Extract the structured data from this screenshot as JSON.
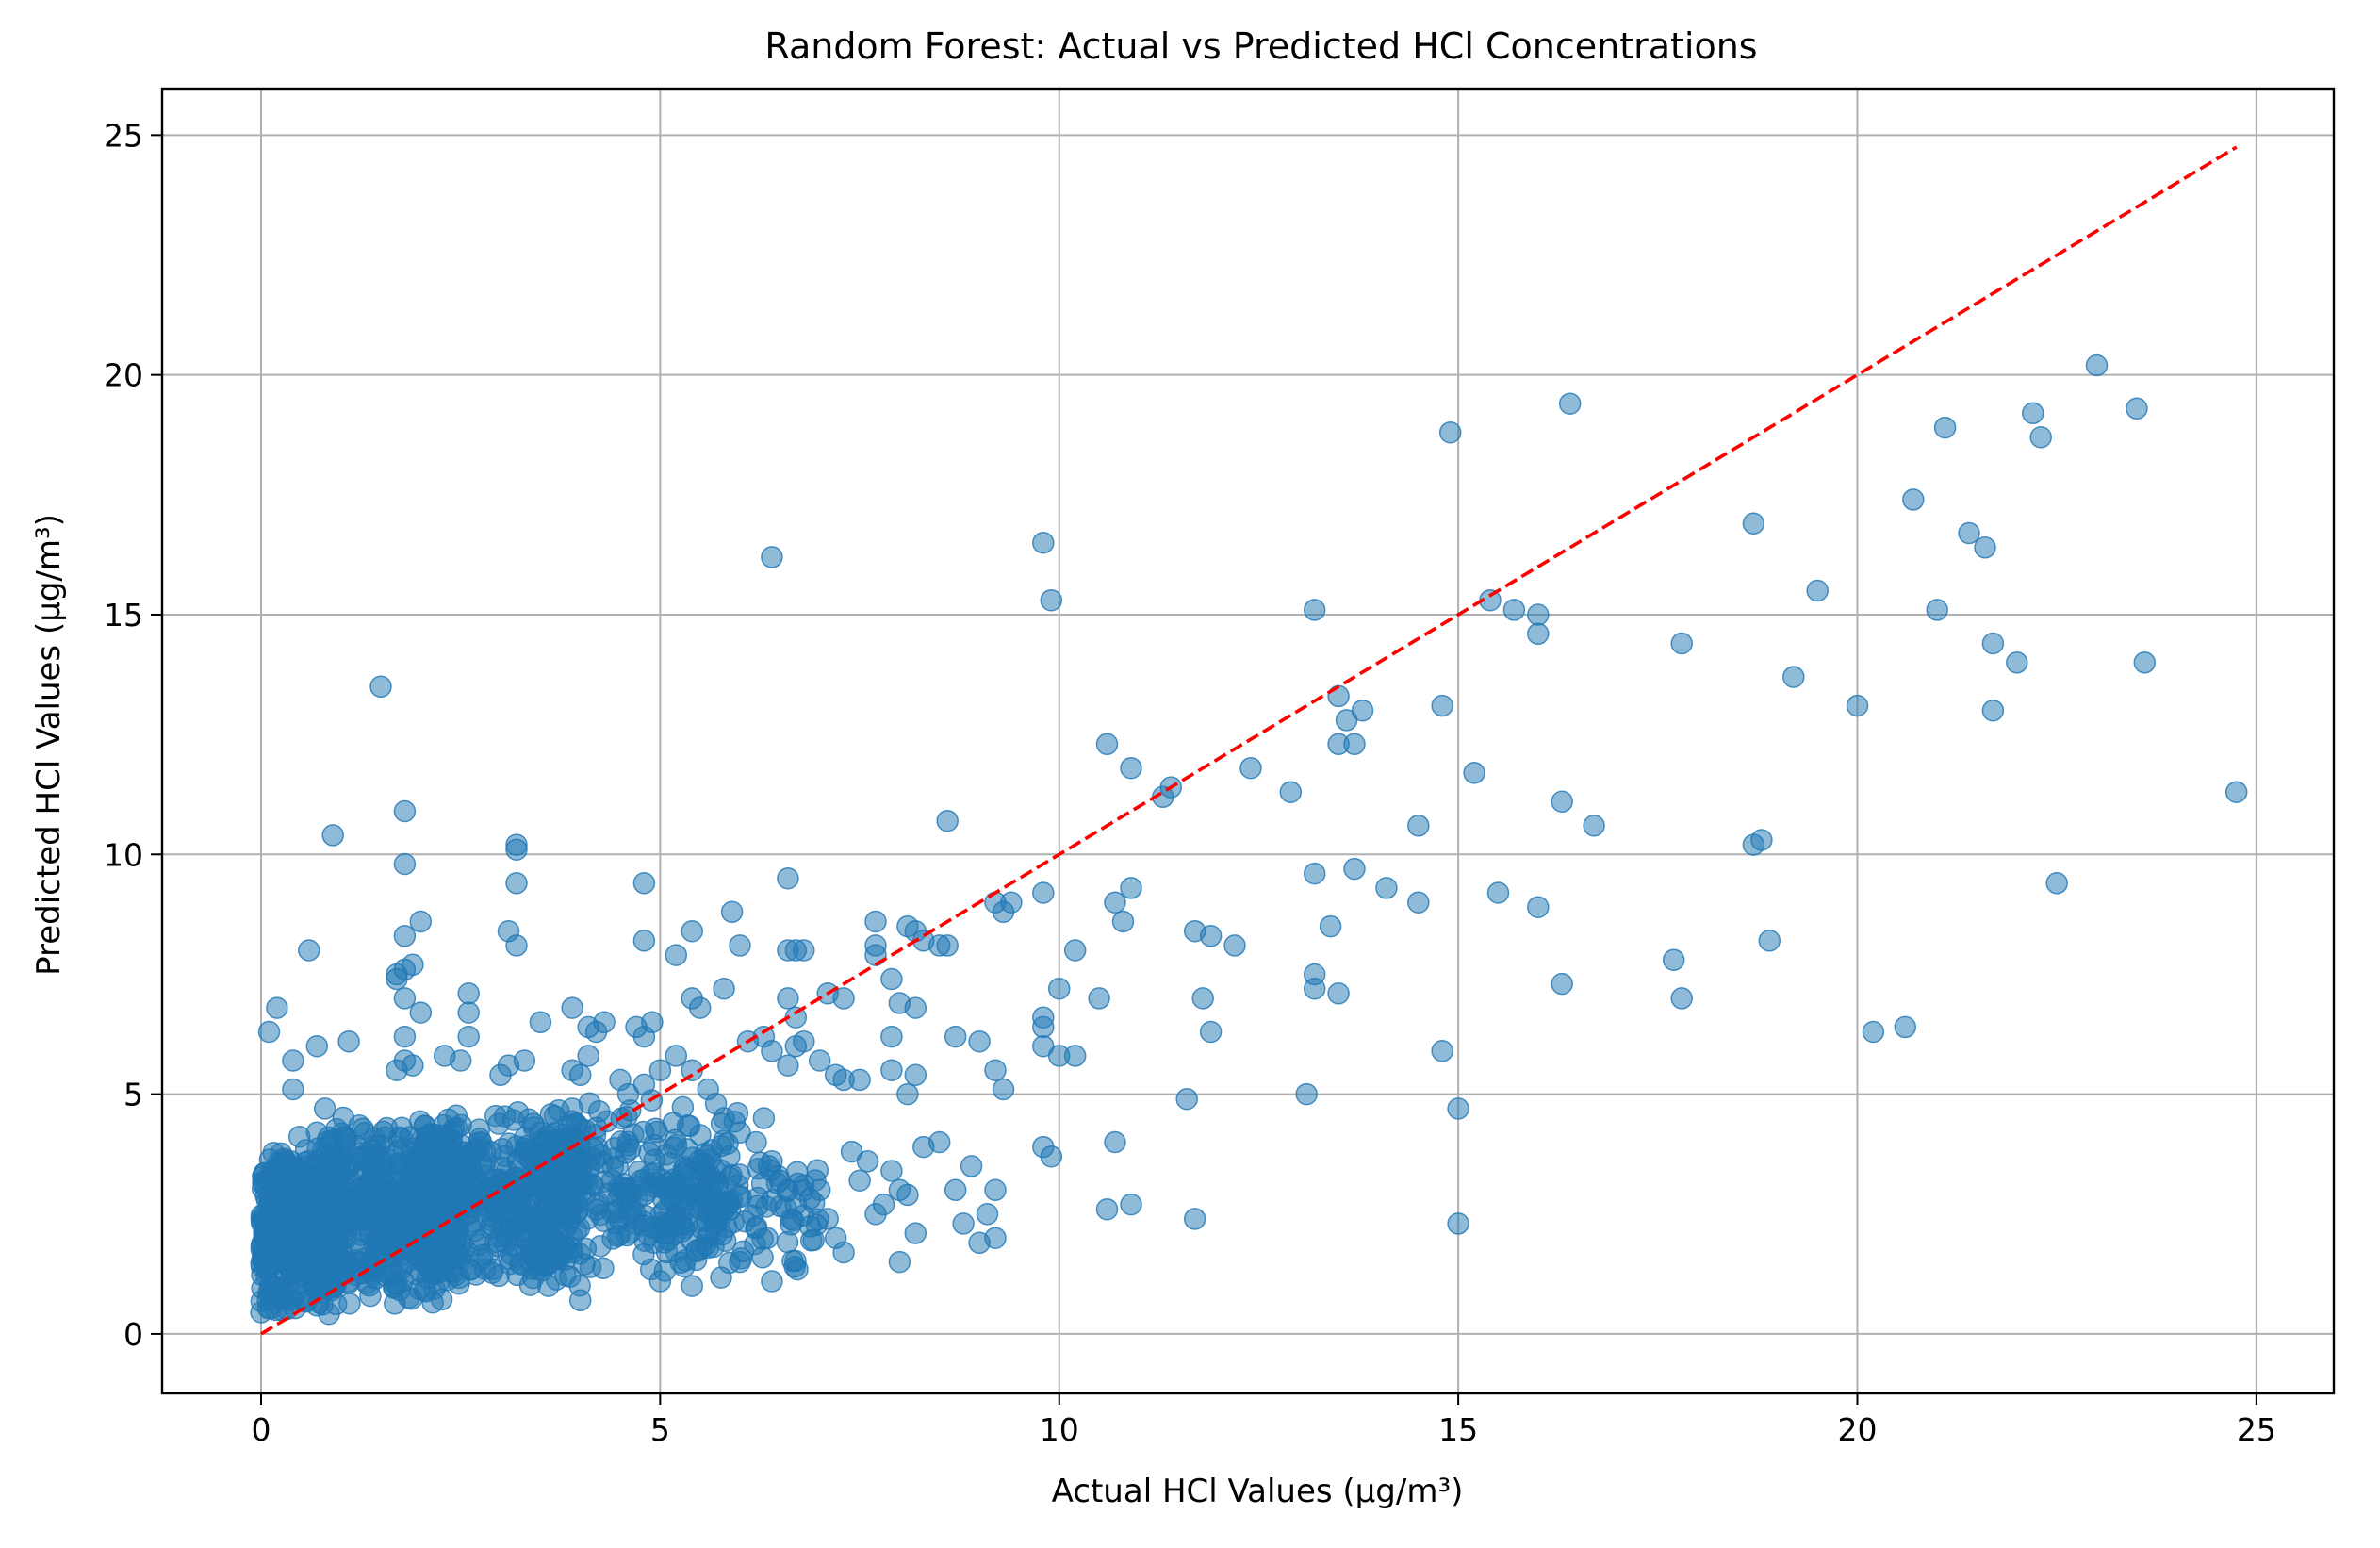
{
  "chart_data": {
    "type": "scatter",
    "title": "Random Forest: Actual vs Predicted HCl Concentrations",
    "xlabel": "Actual HCl Values (µg/m³)",
    "ylabel": "Predicted HCl Values (µg/m³)",
    "xlim": [
      -1.24,
      25.97
    ],
    "ylim": [
      -1.24,
      25.97
    ],
    "xticks": [
      0,
      5,
      10,
      15,
      20,
      25
    ],
    "yticks": [
      0,
      5,
      10,
      15,
      20,
      25
    ],
    "xtick_labels": [
      "0",
      "5",
      "10",
      "15",
      "20",
      "25"
    ],
    "ytick_labels": [
      "0",
      "5",
      "10",
      "15",
      "20",
      "25"
    ],
    "grid": true,
    "legend": "none",
    "colors": {
      "points": "#1f77b4",
      "reference_line": "#ff0000",
      "grid": "#b0b0b0"
    },
    "reference_line": {
      "style": "dashed",
      "x": [
        0,
        24.75
      ],
      "y": [
        0,
        24.75
      ]
    },
    "series": [
      {
        "marker": "circle",
        "alpha": 0.5,
        "points": [
          [
            1.5,
            13.5
          ],
          [
            1.8,
            10.9
          ],
          [
            0.9,
            10.4
          ],
          [
            1.8,
            9.8
          ],
          [
            3.2,
            10.2
          ],
          [
            3.2,
            10.1
          ],
          [
            3.2,
            9.4
          ],
          [
            4.8,
            9.4
          ],
          [
            0.6,
            8.0
          ],
          [
            1.8,
            8.3
          ],
          [
            2.0,
            8.6
          ],
          [
            3.1,
            8.4
          ],
          [
            3.2,
            8.1
          ],
          [
            1.7,
            7.5
          ],
          [
            1.8,
            7.6
          ],
          [
            1.9,
            7.7
          ],
          [
            1.7,
            7.4
          ],
          [
            0.2,
            6.8
          ],
          [
            0.1,
            6.3
          ],
          [
            0.7,
            6.0
          ],
          [
            1.1,
            6.1
          ],
          [
            2.6,
            7.1
          ],
          [
            2.6,
            6.7
          ],
          [
            1.8,
            7.0
          ],
          [
            2.0,
            6.7
          ],
          [
            1.8,
            6.2
          ],
          [
            1.8,
            5.7
          ],
          [
            1.7,
            5.5
          ],
          [
            1.9,
            5.6
          ],
          [
            2.3,
            5.8
          ],
          [
            2.5,
            5.7
          ],
          [
            2.6,
            6.2
          ],
          [
            0.4,
            5.7
          ],
          [
            0.4,
            5.1
          ],
          [
            0.8,
            4.7
          ],
          [
            0.7,
            4.2
          ],
          [
            3.5,
            6.5
          ],
          [
            3.3,
            5.7
          ],
          [
            3.1,
            5.6
          ],
          [
            3.0,
            5.4
          ],
          [
            3.9,
            6.8
          ],
          [
            4.1,
            6.4
          ],
          [
            4.2,
            6.3
          ],
          [
            4.3,
            6.5
          ],
          [
            4.1,
            5.8
          ],
          [
            3.9,
            5.5
          ],
          [
            4.0,
            5.4
          ],
          [
            4.7,
            6.4
          ],
          [
            4.8,
            6.2
          ],
          [
            4.9,
            6.5
          ],
          [
            4.8,
            8.2
          ],
          [
            5.2,
            7.9
          ],
          [
            5.4,
            8.4
          ],
          [
            5.9,
            8.8
          ],
          [
            6.0,
            8.1
          ],
          [
            6.4,
            16.2
          ],
          [
            5.4,
            7.0
          ],
          [
            5.5,
            6.8
          ],
          [
            5.8,
            7.2
          ],
          [
            6.1,
            6.1
          ],
          [
            6.3,
            6.2
          ],
          [
            6.4,
            5.9
          ],
          [
            6.6,
            9.5
          ],
          [
            6.6,
            8.0
          ],
          [
            6.7,
            8.0
          ],
          [
            6.8,
            8.0
          ],
          [
            6.6,
            7.0
          ],
          [
            6.7,
            6.6
          ],
          [
            6.8,
            6.1
          ],
          [
            6.7,
            6.0
          ],
          [
            6.6,
            5.6
          ],
          [
            7.1,
            7.1
          ],
          [
            7.3,
            7.0
          ],
          [
            7.0,
            5.7
          ],
          [
            7.2,
            5.4
          ],
          [
            7.5,
            5.3
          ],
          [
            7.3,
            5.3
          ],
          [
            7.7,
            8.6
          ],
          [
            7.7,
            8.1
          ],
          [
            7.7,
            7.9
          ],
          [
            7.9,
            7.4
          ],
          [
            8.1,
            8.5
          ],
          [
            8.2,
            8.4
          ],
          [
            8.3,
            8.2
          ],
          [
            8.5,
            8.1
          ],
          [
            8.6,
            8.1
          ],
          [
            8.0,
            6.9
          ],
          [
            8.2,
            6.8
          ],
          [
            7.9,
            6.2
          ],
          [
            7.9,
            5.5
          ],
          [
            8.1,
            5.0
          ],
          [
            8.2,
            5.4
          ],
          [
            8.6,
            10.7
          ],
          [
            8.7,
            6.2
          ],
          [
            9.0,
            6.1
          ],
          [
            9.3,
            8.8
          ],
          [
            9.2,
            9.0
          ],
          [
            9.4,
            9.0
          ],
          [
            9.2,
            5.5
          ],
          [
            9.3,
            5.1
          ],
          [
            9.8,
            9.2
          ],
          [
            9.8,
            16.5
          ],
          [
            9.9,
            15.3
          ],
          [
            10.6,
            12.3
          ],
          [
            10.9,
            11.8
          ],
          [
            11.3,
            11.2
          ],
          [
            11.4,
            11.4
          ],
          [
            10.2,
            8.0
          ],
          [
            10.0,
            7.2
          ],
          [
            10.5,
            7.0
          ],
          [
            10.7,
            9.0
          ],
          [
            10.8,
            8.6
          ],
          [
            10.9,
            9.3
          ],
          [
            9.8,
            6.6
          ],
          [
            9.8,
            6.4
          ],
          [
            9.8,
            6.0
          ],
          [
            10.0,
            5.8
          ],
          [
            10.2,
            5.8
          ],
          [
            9.8,
            3.9
          ],
          [
            9.9,
            3.7
          ],
          [
            10.7,
            4.0
          ],
          [
            10.6,
            2.6
          ],
          [
            10.9,
            2.7
          ],
          [
            11.7,
            2.4
          ],
          [
            11.6,
            4.9
          ],
          [
            11.7,
            8.4
          ],
          [
            11.9,
            8.3
          ],
          [
            12.2,
            8.1
          ],
          [
            11.8,
            7.0
          ],
          [
            11.9,
            6.3
          ],
          [
            12.4,
            11.8
          ],
          [
            12.9,
            11.3
          ],
          [
            13.2,
            15.1
          ],
          [
            13.5,
            13.3
          ],
          [
            13.6,
            12.8
          ],
          [
            13.5,
            12.3
          ],
          [
            13.7,
            12.3
          ],
          [
            13.8,
            13.0
          ],
          [
            13.2,
            9.6
          ],
          [
            13.4,
            8.5
          ],
          [
            13.2,
            7.5
          ],
          [
            13.2,
            7.2
          ],
          [
            13.5,
            7.1
          ],
          [
            13.7,
            9.7
          ],
          [
            13.1,
            5.0
          ],
          [
            14.1,
            9.3
          ],
          [
            14.5,
            10.6
          ],
          [
            14.5,
            9.0
          ],
          [
            14.8,
            13.1
          ],
          [
            14.9,
            18.8
          ],
          [
            15.2,
            11.7
          ],
          [
            15.4,
            15.3
          ],
          [
            15.7,
            15.1
          ],
          [
            16.0,
            15.0
          ],
          [
            16.0,
            14.6
          ],
          [
            16.4,
            19.4
          ],
          [
            16.3,
            11.1
          ],
          [
            16.7,
            10.6
          ],
          [
            15.5,
            9.2
          ],
          [
            16.0,
            8.9
          ],
          [
            16.3,
            7.3
          ],
          [
            14.8,
            5.9
          ],
          [
            15.0,
            4.7
          ],
          [
            15.0,
            2.3
          ],
          [
            17.7,
            7.8
          ],
          [
            17.8,
            7.0
          ],
          [
            17.8,
            14.4
          ],
          [
            18.7,
            16.9
          ],
          [
            18.7,
            10.2
          ],
          [
            18.8,
            10.3
          ],
          [
            18.9,
            8.2
          ],
          [
            19.2,
            13.7
          ],
          [
            19.5,
            15.5
          ],
          [
            20.0,
            13.1
          ],
          [
            20.2,
            6.3
          ],
          [
            20.6,
            6.4
          ],
          [
            20.7,
            17.4
          ],
          [
            21.0,
            15.1
          ],
          [
            21.1,
            18.9
          ],
          [
            21.4,
            16.7
          ],
          [
            21.6,
            16.4
          ],
          [
            21.7,
            14.4
          ],
          [
            21.7,
            13.0
          ],
          [
            22.0,
            14.0
          ],
          [
            22.2,
            19.2
          ],
          [
            22.3,
            18.7
          ],
          [
            22.5,
            9.4
          ],
          [
            23.0,
            20.2
          ],
          [
            23.5,
            19.3
          ],
          [
            23.6,
            14.0
          ],
          [
            24.75,
            11.3
          ],
          [
            4.5,
            5.3
          ],
          [
            4.6,
            5.0
          ],
          [
            4.8,
            5.2
          ],
          [
            5.0,
            5.5
          ],
          [
            5.2,
            5.8
          ],
          [
            5.4,
            5.5
          ],
          [
            5.6,
            5.1
          ],
          [
            5.7,
            4.8
          ],
          [
            5.8,
            4.5
          ],
          [
            6.0,
            4.2
          ],
          [
            6.2,
            4.0
          ],
          [
            6.3,
            4.5
          ],
          [
            6.4,
            3.6
          ],
          [
            6.5,
            3.2
          ],
          [
            6.6,
            3.0
          ],
          [
            6.7,
            2.7
          ],
          [
            6.8,
            3.1
          ],
          [
            7.0,
            3.0
          ],
          [
            7.1,
            2.4
          ],
          [
            7.2,
            2.0
          ],
          [
            7.3,
            1.7
          ],
          [
            7.4,
            3.8
          ],
          [
            7.5,
            3.2
          ],
          [
            7.6,
            3.6
          ],
          [
            7.7,
            2.5
          ],
          [
            7.8,
            2.7
          ],
          [
            7.9,
            3.4
          ],
          [
            8.0,
            3.0
          ],
          [
            8.1,
            2.9
          ],
          [
            8.2,
            2.1
          ],
          [
            8.0,
            1.5
          ],
          [
            8.3,
            3.9
          ],
          [
            8.5,
            4.0
          ],
          [
            8.7,
            3.0
          ],
          [
            8.8,
            2.3
          ],
          [
            9.0,
            1.9
          ],
          [
            9.1,
            2.5
          ],
          [
            9.2,
            2.0
          ],
          [
            9.2,
            3.0
          ],
          [
            8.9,
            3.5
          ],
          [
            6.4,
            1.1
          ],
          [
            6.2,
            2.2
          ],
          [
            6.0,
            1.5
          ],
          [
            5.8,
            2.6
          ],
          [
            5.6,
            1.8
          ],
          [
            5.4,
            1.0
          ],
          [
            5.2,
            2.4
          ],
          [
            5.0,
            1.1
          ],
          [
            3.8,
            2.2
          ],
          [
            4.0,
            0.7
          ],
          [
            3.6,
            1.0
          ],
          [
            3.5,
            3.4
          ],
          [
            3.9,
            4.7
          ],
          [
            4.2,
            4.3
          ],
          [
            4.4,
            3.2
          ],
          [
            4.6,
            2.5
          ]
        ]
      }
    ],
    "dense_clusters": [
      {
        "x_range": [
          0.0,
          1.0
        ],
        "y_range": [
          0.3,
          4.2
        ],
        "count": 520
      },
      {
        "x_range": [
          0.8,
          2.5
        ],
        "y_range": [
          0.5,
          4.6
        ],
        "count": 480
      },
      {
        "x_range": [
          2.0,
          4.0
        ],
        "y_range": [
          0.8,
          4.8
        ],
        "count": 420
      },
      {
        "x_range": [
          3.5,
          6.0
        ],
        "y_range": [
          1.0,
          5.1
        ],
        "count": 260
      },
      {
        "x_range": [
          5.0,
          7.0
        ],
        "y_range": [
          1.0,
          4.0
        ],
        "count": 90
      }
    ]
  }
}
